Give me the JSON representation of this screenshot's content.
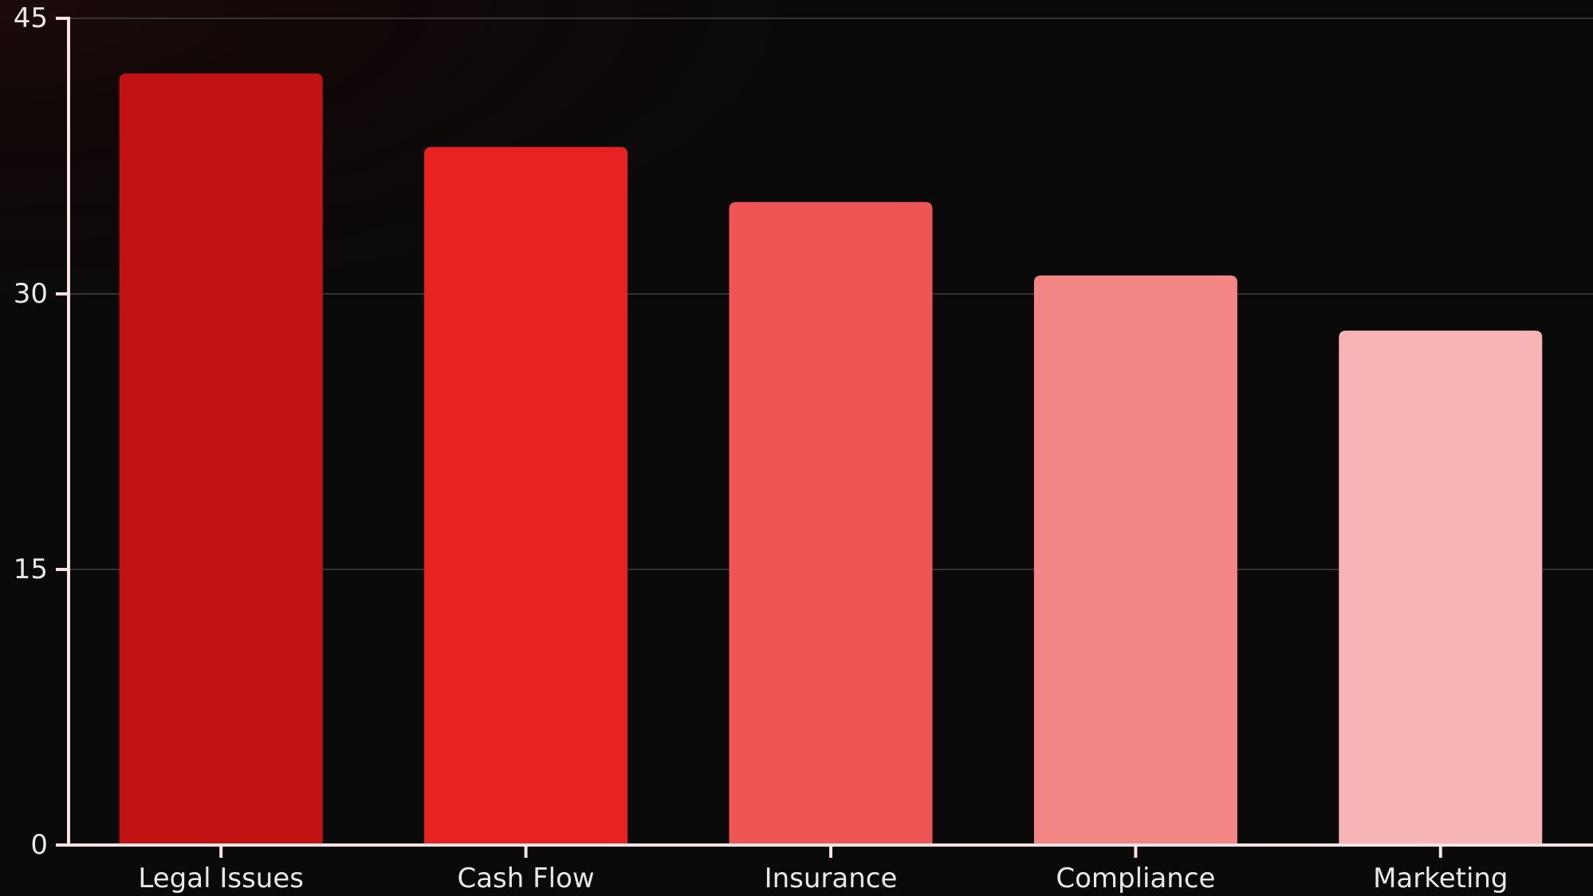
{
  "chart_data": {
    "type": "bar",
    "title": "",
    "xlabel": "",
    "ylabel": "",
    "categories": [
      "Legal Issues",
      "Cash Flow",
      "Insurance",
      "Compliance",
      "Marketing"
    ],
    "values": [
      42,
      38,
      35,
      31,
      28
    ],
    "ylim": [
      0,
      45
    ],
    "yticks": [
      0,
      15,
      30,
      45
    ],
    "grid": true,
    "legend": "none",
    "colors": [
      "#c11313",
      "#e82222",
      "#ee5555",
      "#f38585",
      "#f7b4b4"
    ],
    "background": "#0a0a0b",
    "axis_color": "#f8e2e2",
    "grid_color": "#333333"
  }
}
